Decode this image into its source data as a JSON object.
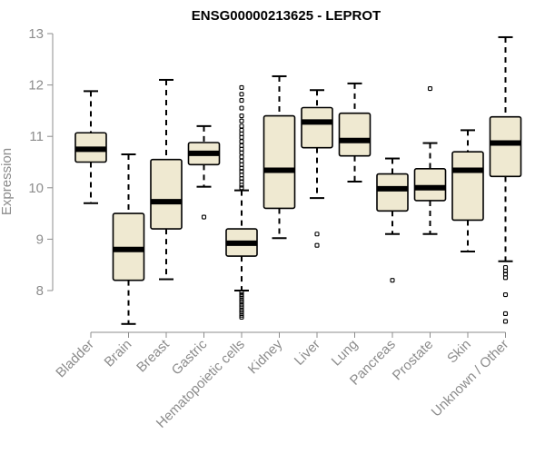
{
  "chart_data": {
    "type": "boxplot",
    "title": "ENSG00000213625 - LEPROT",
    "xlabel": "",
    "ylabel": "Expression",
    "ylim": [
      7.0,
      13.0
    ],
    "yticks": [
      8,
      9,
      10,
      11,
      12,
      13
    ],
    "colors": {
      "box_fill": "#efe9d1",
      "box_stroke": "#000000",
      "axis": "#8c8c8c"
    },
    "categories": [
      "Bladder",
      "Brain",
      "Breast",
      "Gastric",
      "Hematopoietic cells",
      "Kidney",
      "Liver",
      "Lung",
      "Pancreas",
      "Prostate",
      "Skin",
      "Unknown / Other"
    ],
    "boxes": [
      {
        "label": "Bladder",
        "whisker_low": 9.7,
        "q1": 10.5,
        "median": 10.75,
        "q3": 11.07,
        "whisker_high": 11.88,
        "outliers": []
      },
      {
        "label": "Brain",
        "whisker_low": 7.35,
        "q1": 8.2,
        "median": 8.8,
        "q3": 9.5,
        "whisker_high": 10.65,
        "outliers": []
      },
      {
        "label": "Breast",
        "whisker_low": 8.22,
        "q1": 9.2,
        "median": 9.73,
        "q3": 10.55,
        "whisker_high": 12.1,
        "outliers": []
      },
      {
        "label": "Gastric",
        "whisker_low": 10.02,
        "q1": 10.45,
        "median": 10.67,
        "q3": 10.88,
        "whisker_high": 11.2,
        "outliers": [
          9.43
        ]
      },
      {
        "label": "Hematopoietic cells",
        "whisker_low": 8.0,
        "q1": 8.67,
        "median": 8.92,
        "q3": 9.2,
        "whisker_high": 9.95,
        "outliers": [
          7.48,
          7.52,
          7.58,
          7.62,
          7.68,
          7.72,
          7.78,
          7.82,
          7.88,
          7.92,
          7.97,
          10.0,
          10.05,
          10.12,
          10.18,
          10.25,
          10.32,
          10.38,
          10.45,
          10.52,
          10.6,
          10.68,
          10.75,
          10.82,
          10.9,
          10.98,
          11.05,
          11.12,
          11.2,
          11.3,
          11.4,
          11.55,
          11.7,
          11.82,
          11.95
        ]
      },
      {
        "label": "Kidney",
        "whisker_low": 9.02,
        "q1": 9.6,
        "median": 10.34,
        "q3": 11.4,
        "whisker_high": 12.17,
        "outliers": []
      },
      {
        "label": "Liver",
        "whisker_low": 9.8,
        "q1": 10.78,
        "median": 11.28,
        "q3": 11.56,
        "whisker_high": 11.9,
        "outliers": [
          9.1,
          8.88
        ]
      },
      {
        "label": "Lung",
        "whisker_low": 10.12,
        "q1": 10.62,
        "median": 10.92,
        "q3": 11.45,
        "whisker_high": 12.03,
        "outliers": []
      },
      {
        "label": "Pancreas",
        "whisker_low": 9.1,
        "q1": 9.55,
        "median": 9.98,
        "q3": 10.27,
        "whisker_high": 10.57,
        "outliers": [
          8.2
        ]
      },
      {
        "label": "Prostate",
        "whisker_low": 9.1,
        "q1": 9.75,
        "median": 10.0,
        "q3": 10.37,
        "whisker_high": 10.87,
        "outliers": [
          11.93
        ]
      },
      {
        "label": "Skin",
        "whisker_low": 8.76,
        "q1": 9.37,
        "median": 10.34,
        "q3": 10.7,
        "whisker_high": 11.12,
        "outliers": []
      },
      {
        "label": "Unknown / Other",
        "whisker_low": 8.57,
        "q1": 10.22,
        "median": 10.87,
        "q3": 11.38,
        "whisker_high": 12.93,
        "outliers": [
          8.25,
          8.32,
          8.38,
          8.45,
          7.92,
          7.55,
          7.4
        ]
      }
    ]
  }
}
